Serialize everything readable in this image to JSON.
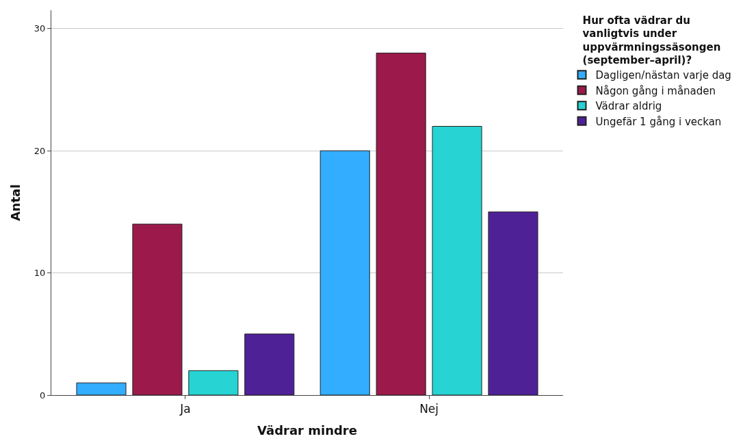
{
  "chart_data": {
    "type": "bar",
    "xlabel": "Vädrar mindre",
    "ylabel": "Antal",
    "legend_title": "Hur ofta vädrar du vanligtvis under uppvärmningssäsongen (september–april)?",
    "categories": [
      "Ja",
      "Nej"
    ],
    "series": [
      {
        "name": "Dagligen/nästan varje dag",
        "color": "#33adff",
        "values": [
          1,
          20
        ]
      },
      {
        "name": "Någon gång i månaden",
        "color": "#9b1a4b",
        "values": [
          14,
          28
        ]
      },
      {
        "name": "Vädrar aldrig",
        "color": "#27d3d3",
        "values": [
          2,
          22
        ]
      },
      {
        "name": "Ungefär 1 gång i veckan",
        "color": "#4f2197",
        "values": [
          5,
          15
        ]
      }
    ],
    "ylim": [
      0,
      31.5
    ],
    "yticks": [
      0,
      10,
      20,
      30
    ],
    "grid": "y",
    "legend": "top right"
  }
}
